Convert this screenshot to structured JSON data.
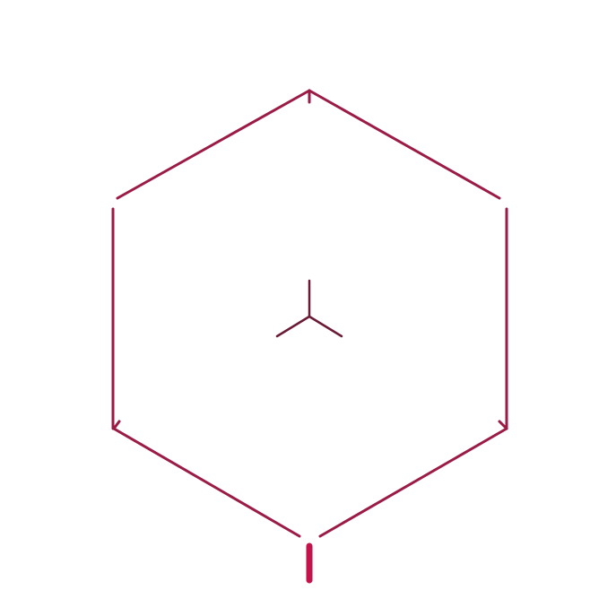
{
  "logo": {
    "shape": "hexagon-outline",
    "inner_mark": "y-tripod",
    "colors": {
      "outline": "#9b1b45",
      "inner_mark": "#6b1a36",
      "stem": "#c4124a",
      "background": "#ffffff"
    }
  }
}
